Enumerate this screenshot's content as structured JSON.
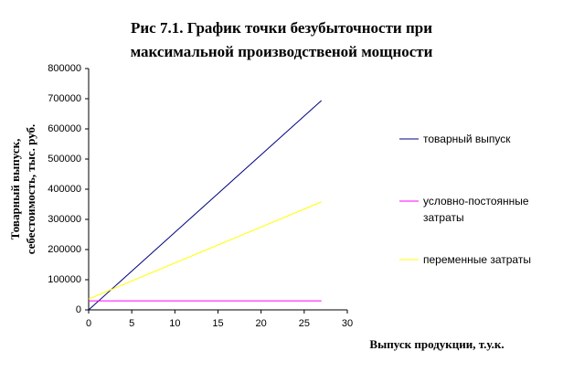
{
  "chart_data": {
    "type": "line",
    "title": [
      "Рис 7.1. График точки безубыточности при",
      "максимальной производственой мощности"
    ],
    "y_label": [
      "Товарный выпуск,",
      "себестоимость, тыс. руб."
    ],
    "x_label": "Выпуск продукции, т.у.к.",
    "x": [
      0,
      27
    ],
    "series": [
      {
        "name": "товарный выпуск",
        "color": "#000080",
        "values": [
          0,
          694000
        ]
      },
      {
        "name": "условно-постоянные затраты",
        "color": "#ff00ff",
        "values": [
          30000,
          30000
        ]
      },
      {
        "name": "переменные затраты",
        "color": "#ffff00",
        "values": [
          36000,
          358000
        ]
      }
    ],
    "xlim": [
      0,
      30
    ],
    "xticks": [
      0,
      5,
      10,
      15,
      20,
      25,
      30
    ],
    "ylim": [
      0,
      800000
    ],
    "yticks": [
      0,
      100000,
      200000,
      300000,
      400000,
      500000,
      600000,
      700000,
      800000
    ],
    "grid": false,
    "legend": "right"
  }
}
